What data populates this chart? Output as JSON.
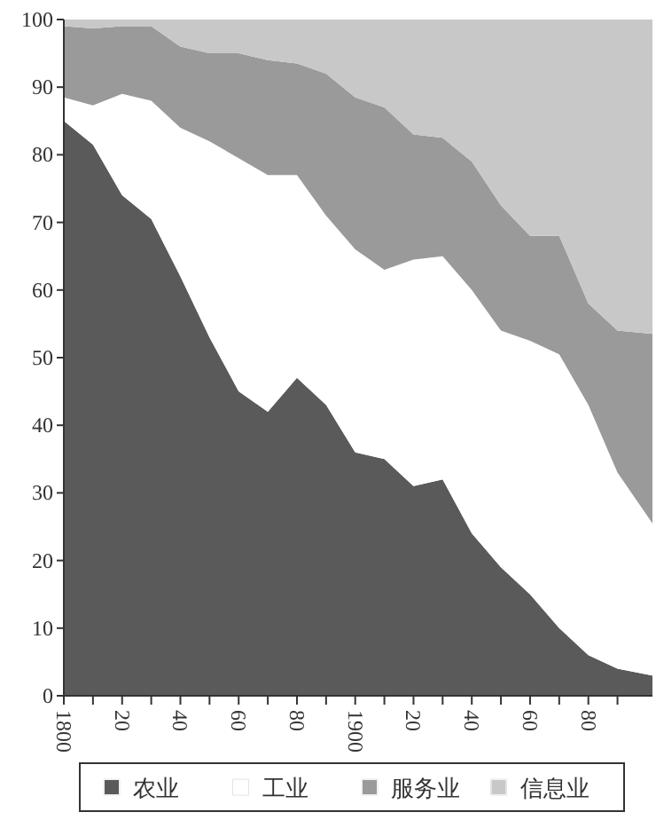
{
  "chart_data": {
    "type": "area",
    "stacked": true,
    "x": [
      1800,
      1810,
      1820,
      1830,
      1840,
      1850,
      1860,
      1870,
      1880,
      1890,
      1900,
      1910,
      1920,
      1930,
      1940,
      1950,
      1960,
      1970,
      1980,
      1990,
      2002
    ],
    "series": [
      {
        "name": "农业",
        "color": "#5a5a5a",
        "values": [
          85,
          81.5,
          74,
          70.5,
          62,
          53,
          45,
          42,
          47,
          43,
          36,
          35,
          31,
          32,
          24,
          19,
          15,
          10,
          6,
          4,
          3
        ]
      },
      {
        "name": "工业",
        "color": "#ffffff",
        "values": [
          3.5,
          5.8,
          15,
          17.5,
          22,
          29,
          34.5,
          35,
          30,
          28,
          30,
          28,
          33.5,
          33,
          36,
          35,
          37.5,
          40.5,
          37,
          29,
          22.5
        ]
      },
      {
        "name": "服务业",
        "color": "#9a9a9a",
        "values": [
          10.5,
          11.4,
          10,
          11,
          12,
          13,
          15.5,
          17,
          16.5,
          21,
          22.5,
          24,
          18.5,
          17.5,
          19,
          18.5,
          15.5,
          17.5,
          15,
          21,
          28
        ]
      },
      {
        "name": "信息业",
        "color": "#c8c8c8",
        "values": [
          1,
          1.3,
          1,
          1,
          4,
          5,
          5,
          6,
          6.5,
          8,
          11.5,
          13,
          17,
          17.5,
          21,
          27.5,
          32,
          32,
          42,
          46,
          46.5
        ]
      }
    ],
    "xlim": [
      1800,
      2002
    ],
    "xticks": [
      {
        "value": 1800,
        "label": "1800"
      },
      {
        "value": 1810,
        "label": null
      },
      {
        "value": 1820,
        "label": "20"
      },
      {
        "value": 1830,
        "label": null
      },
      {
        "value": 1840,
        "label": "40"
      },
      {
        "value": 1850,
        "label": null
      },
      {
        "value": 1860,
        "label": "60"
      },
      {
        "value": 1870,
        "label": null
      },
      {
        "value": 1880,
        "label": "80"
      },
      {
        "value": 1890,
        "label": null
      },
      {
        "value": 1900,
        "label": "1900"
      },
      {
        "value": 1910,
        "label": null
      },
      {
        "value": 1920,
        "label": "20"
      },
      {
        "value": 1930,
        "label": null
      },
      {
        "value": 1940,
        "label": "40"
      },
      {
        "value": 1950,
        "label": null
      },
      {
        "value": 1960,
        "label": "60"
      },
      {
        "value": 1970,
        "label": null
      },
      {
        "value": 1980,
        "label": "80"
      },
      {
        "value": 1990,
        "label": null
      }
    ],
    "ylim": [
      0,
      100
    ],
    "yticks": [
      0,
      10,
      20,
      30,
      40,
      50,
      60,
      70,
      80,
      90,
      100
    ],
    "legend": "bottom",
    "grid": false
  }
}
